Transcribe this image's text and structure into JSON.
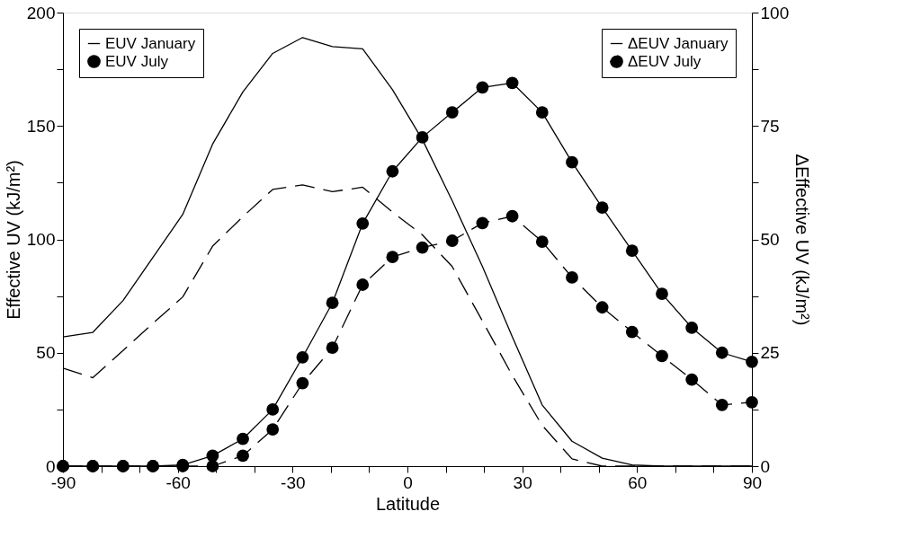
{
  "chart_data": {
    "type": "line",
    "xlabel": "Latitude",
    "ylabel": "Effective UV (kJ/m²)",
    "y2label": "ΔEffective UV (kJ/m²)",
    "x": [
      -90,
      -82.2,
      -74.3,
      -66.5,
      -58.7,
      -50.9,
      -43.0,
      -35.2,
      -27.4,
      -19.6,
      -11.7,
      -3.9,
      3.9,
      11.7,
      19.6,
      27.4,
      35.2,
      43.0,
      50.9,
      58.7,
      66.5,
      74.3,
      82.2,
      90
    ],
    "series": [
      {
        "name": "EUV January",
        "color": "#000000",
        "marker": "none",
        "line_style": "solid",
        "values": [
          57,
          59,
          73,
          92,
          111,
          142,
          165,
          182,
          189,
          185,
          184,
          166,
          144,
          117,
          88,
          57,
          27,
          11,
          3.5,
          0.5,
          0,
          0,
          0,
          0
        ]
      },
      {
        "name": "EUV July",
        "color": "#000000",
        "marker": "circle",
        "line_style": "solid",
        "values": [
          0,
          0,
          0,
          0,
          0.5,
          4.6,
          12,
          25,
          48,
          72,
          107,
          130,
          145,
          156,
          167,
          169,
          156,
          134,
          114,
          95,
          76,
          61,
          50,
          46
        ]
      },
      {
        "name": "ΔEUV January",
        "color": "#000000",
        "marker": "none",
        "line_style": "dashed",
        "axis": "y2",
        "values": [
          21.6,
          19.5,
          25.5,
          31.5,
          37.3,
          48.5,
          55,
          61,
          62,
          60.5,
          61.5,
          56,
          51,
          44,
          32,
          20,
          9,
          1.6,
          0,
          0,
          0,
          0,
          0,
          0
        ]
      },
      {
        "name": "ΔEUV July",
        "color": "#000000",
        "marker": "circle",
        "line_style": "dashed",
        "axis": "y2",
        "values": [
          0,
          0,
          0,
          0,
          0,
          0,
          2.3,
          8.1,
          18.3,
          26.1,
          40,
          46.1,
          48.2,
          49.7,
          53.6,
          55.1,
          49.5,
          41.6,
          35,
          29.6,
          24.3,
          19.1,
          13.5,
          14.1
        ]
      }
    ],
    "xlim": [
      -90,
      90
    ],
    "xticks": [
      -90,
      {
        "value": -80,
        "label": null
      },
      {
        "value": -70,
        "label": null
      },
      -60,
      {
        "value": -50,
        "label": null
      },
      {
        "value": -40,
        "label": null
      },
      -30,
      {
        "value": -20,
        "label": null
      },
      {
        "value": -10,
        "label": null
      },
      0,
      {
        "value": 10,
        "label": null
      },
      {
        "value": 20,
        "label": null
      },
      30,
      {
        "value": 40,
        "label": null
      },
      {
        "value": 50,
        "label": null
      },
      60,
      {
        "value": 70,
        "label": null
      },
      {
        "value": 80,
        "label": null
      },
      90
    ],
    "ylim": [
      0,
      200
    ],
    "yticks": [
      0,
      {
        "value": 25,
        "label": null
      },
      50,
      {
        "value": 75,
        "label": null
      },
      100,
      {
        "value": 125,
        "label": null
      },
      150,
      {
        "value": 175,
        "label": null
      },
      200
    ],
    "y2lim": [
      0,
      100
    ],
    "y2ticks": [
      0,
      {
        "value": 12.5,
        "label": null
      },
      25,
      {
        "value": 37.5,
        "label": null
      },
      50,
      {
        "value": 62.5,
        "label": null
      },
      75,
      {
        "value": 87.5,
        "label": null
      },
      100
    ],
    "grid": false,
    "legend": "top left"
  }
}
